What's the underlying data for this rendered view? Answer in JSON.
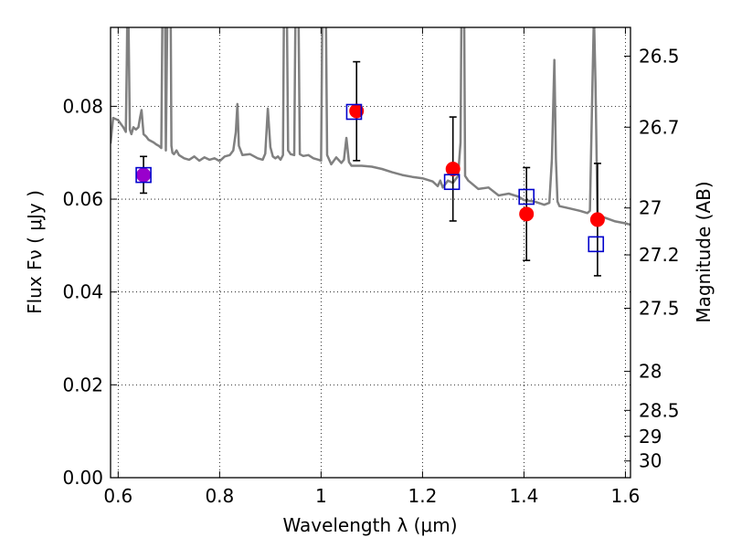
{
  "chart_data": {
    "type": "scatter",
    "title": "",
    "xlabel": "Wavelength  λ (μm)",
    "ylabel": "Flux  Fν  ( μJy )",
    "y2label": "Magnitude (AB)",
    "xlim": [
      0.585,
      1.61
    ],
    "ylim": [
      0.0,
      0.097
    ],
    "grid": true,
    "x_ticks": [
      {
        "value": 0.6,
        "label": "0.6"
      },
      {
        "value": 0.8,
        "label": "0.8"
      },
      {
        "value": 1.0,
        "label": "1"
      },
      {
        "value": 1.2,
        "label": "1.2"
      },
      {
        "value": 1.4,
        "label": "1.4"
      },
      {
        "value": 1.6,
        "label": "1.6"
      }
    ],
    "y_ticks": [
      {
        "value": 0.0,
        "label": "0.00"
      },
      {
        "value": 0.02,
        "label": "0.02"
      },
      {
        "value": 0.04,
        "label": "0.04"
      },
      {
        "value": 0.06,
        "label": "0.06"
      },
      {
        "value": 0.08,
        "label": "0.08"
      }
    ],
    "y2_ticks": [
      {
        "flux": 0.0908,
        "label": "26.5"
      },
      {
        "flux": 0.0755,
        "label": "26.7"
      },
      {
        "flux": 0.0581,
        "label": "27"
      },
      {
        "flux": 0.048,
        "label": "27.2"
      },
      {
        "flux": 0.0365,
        "label": "27.5"
      },
      {
        "flux": 0.0229,
        "label": "28"
      },
      {
        "flux": 0.0145,
        "label": "28.5"
      },
      {
        "flux": 0.0089,
        "label": "29"
      },
      {
        "flux": 0.0036,
        "label": "30"
      }
    ],
    "colors": {
      "model": "#808080",
      "observed": "#ff0000",
      "model_photometry": "#0000cc",
      "error_bar": "#000000",
      "blended_point": "#9900cc"
    },
    "model_spectrum": {
      "x": [
        0.585,
        0.59,
        0.6,
        0.61,
        0.615,
        0.617,
        0.619,
        0.623,
        0.626,
        0.63,
        0.635,
        0.64,
        0.643,
        0.646,
        0.65,
        0.655,
        0.66,
        0.665,
        0.67,
        0.675,
        0.68,
        0.685,
        0.688,
        0.69,
        0.692,
        0.694,
        0.698,
        0.701,
        0.703,
        0.705,
        0.707,
        0.71,
        0.715,
        0.72,
        0.73,
        0.74,
        0.75,
        0.76,
        0.77,
        0.78,
        0.79,
        0.8,
        0.81,
        0.82,
        0.827,
        0.832,
        0.835,
        0.838,
        0.845,
        0.86,
        0.875,
        0.885,
        0.89,
        0.895,
        0.9,
        0.905,
        0.91,
        0.915,
        0.92,
        0.925,
        0.928,
        0.931,
        0.935,
        0.94,
        0.947,
        0.951,
        0.954,
        0.958,
        0.965,
        0.975,
        0.985,
        0.995,
        1.0,
        1.004,
        1.008,
        1.012,
        1.02,
        1.03,
        1.04,
        1.045,
        1.05,
        1.055,
        1.06,
        1.08,
        1.1,
        1.12,
        1.14,
        1.16,
        1.18,
        1.2,
        1.22,
        1.23,
        1.235,
        1.24,
        1.25,
        1.26,
        1.27,
        1.275,
        1.278,
        1.281,
        1.284,
        1.29,
        1.31,
        1.33,
        1.35,
        1.37,
        1.39,
        1.4,
        1.42,
        1.44,
        1.45,
        1.455,
        1.46,
        1.463,
        1.466,
        1.47,
        1.49,
        1.51,
        1.525,
        1.53,
        1.535,
        1.538,
        1.541,
        1.545,
        1.56,
        1.58,
        1.6,
        1.61
      ],
      "y": [
        0.072,
        0.0775,
        0.077,
        0.0755,
        0.0745,
        0.09,
        0.11,
        0.075,
        0.074,
        0.0755,
        0.075,
        0.0755,
        0.0775,
        0.0792,
        0.074,
        0.0735,
        0.0728,
        0.0725,
        0.0722,
        0.0718,
        0.0715,
        0.071,
        0.11,
        0.12,
        0.11,
        0.0705,
        0.11,
        0.12,
        0.11,
        0.0715,
        0.07,
        0.0697,
        0.0705,
        0.0695,
        0.0688,
        0.0685,
        0.0692,
        0.0683,
        0.069,
        0.0685,
        0.0688,
        0.0682,
        0.0692,
        0.0695,
        0.0705,
        0.0745,
        0.0805,
        0.0715,
        0.0695,
        0.0697,
        0.0688,
        0.0685,
        0.0698,
        0.0795,
        0.0712,
        0.0692,
        0.0688,
        0.0692,
        0.0685,
        0.0695,
        0.12,
        0.12,
        0.0705,
        0.0697,
        0.0695,
        0.12,
        0.12,
        0.0697,
        0.0693,
        0.0695,
        0.0688,
        0.0685,
        0.0683,
        0.12,
        0.12,
        0.0695,
        0.0675,
        0.069,
        0.0678,
        0.0685,
        0.0732,
        0.068,
        0.0672,
        0.0672,
        0.067,
        0.0665,
        0.0658,
        0.0652,
        0.0648,
        0.0645,
        0.0638,
        0.0628,
        0.064,
        0.0625,
        0.064,
        0.0635,
        0.065,
        0.0722,
        0.12,
        0.12,
        0.065,
        0.064,
        0.0622,
        0.0625,
        0.0608,
        0.0612,
        0.0605,
        0.0598,
        0.0595,
        0.0588,
        0.0592,
        0.0686,
        0.09,
        0.0686,
        0.0595,
        0.0585,
        0.058,
        0.0575,
        0.057,
        0.0575,
        0.085,
        0.1,
        0.085,
        0.0565,
        0.056,
        0.0552,
        0.0548,
        0.0545
      ]
    },
    "observed": [
      {
        "x": 0.65,
        "y": 0.0652,
        "yerr_low": 0.0613,
        "yerr_high": 0.0692
      },
      {
        "x": 1.07,
        "y": 0.079,
        "yerr_low": 0.0683,
        "yerr_high": 0.0896
      },
      {
        "x": 1.26,
        "y": 0.0665,
        "yerr_low": 0.0553,
        "yerr_high": 0.0777
      },
      {
        "x": 1.405,
        "y": 0.0568,
        "yerr_low": 0.0468,
        "yerr_high": 0.0668
      },
      {
        "x": 1.545,
        "y": 0.0556,
        "yerr_low": 0.0435,
        "yerr_high": 0.0677
      }
    ],
    "model_photometry": [
      {
        "x": 0.65,
        "y": 0.0652
      },
      {
        "x": 1.065,
        "y": 0.0788
      },
      {
        "x": 1.258,
        "y": 0.0637
      },
      {
        "x": 1.405,
        "y": 0.0605
      },
      {
        "x": 1.542,
        "y": 0.0503
      }
    ]
  }
}
